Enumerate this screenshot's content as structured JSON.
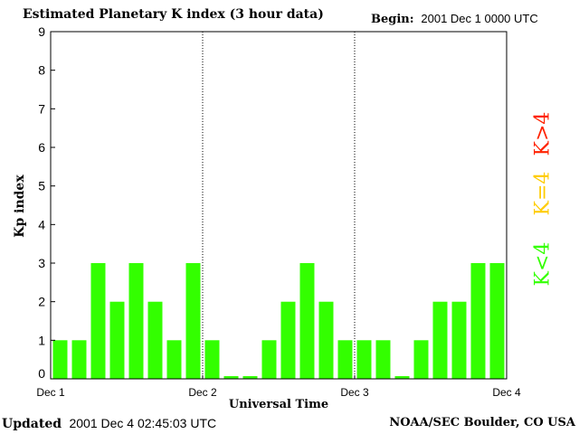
{
  "title": "Estimated Planetary K index (3 hour data)",
  "begin": {
    "label": "Begin:",
    "value": "2001 Dec 1 0000 UTC"
  },
  "updated": {
    "label": "Updated",
    "value": "2001 Dec  4 02:45:03 UTC"
  },
  "source": "NOAA/SEC Boulder, CO USA",
  "legend": [
    {
      "text": "K<4",
      "color": "#33ff00"
    },
    {
      "text": "K=4",
      "color": "#ffcc00"
    },
    {
      "text": "K>4",
      "color": "#ff2200"
    }
  ],
  "chart_data": {
    "type": "bar",
    "title": "Estimated Planetary K index (3 hour data)",
    "xlabel": "Universal Time",
    "ylabel": "Kp index",
    "ylim": [
      0,
      9
    ],
    "yticks": [
      "0",
      "1",
      "2",
      "3",
      "4",
      "5",
      "6",
      "7",
      "8",
      "9"
    ],
    "xtick_labels": [
      "Dec 1",
      "Dec 2",
      "Dec 3",
      "Dec 4"
    ],
    "grid": "vertical dotted lines at day boundaries",
    "bar_color": "#33ff00",
    "categories": [
      "Dec 1 00",
      "Dec 1 03",
      "Dec 1 06",
      "Dec 1 09",
      "Dec 1 12",
      "Dec 1 15",
      "Dec 1 18",
      "Dec 1 21",
      "Dec 2 00",
      "Dec 2 03",
      "Dec 2 06",
      "Dec 2 09",
      "Dec 2 12",
      "Dec 2 15",
      "Dec 2 18",
      "Dec 2 21",
      "Dec 3 00",
      "Dec 3 03",
      "Dec 3 06",
      "Dec 3 09",
      "Dec 3 12",
      "Dec 3 15",
      "Dec 3 18",
      "Dec 3 21"
    ],
    "values": [
      1,
      1,
      3,
      2,
      3,
      2,
      1,
      3,
      1,
      0,
      0,
      1,
      2,
      3,
      2,
      1,
      1,
      1,
      0,
      1,
      2,
      2,
      3,
      3
    ]
  }
}
